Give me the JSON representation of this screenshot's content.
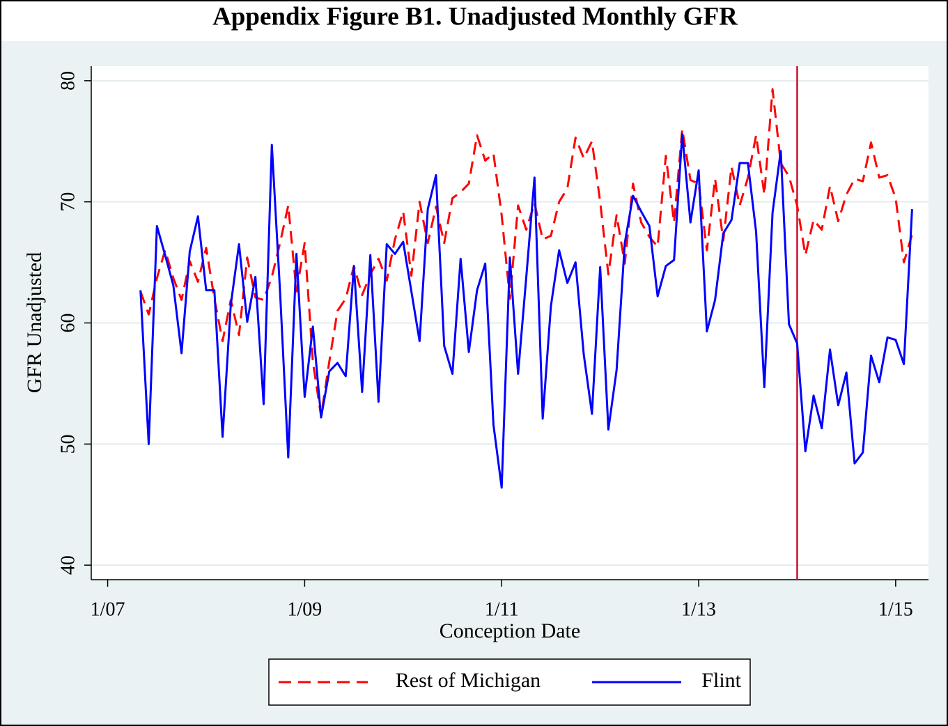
{
  "chart_data": {
    "type": "line",
    "title": "Appendix Figure B1. Unadjusted Monthly GFR",
    "x_label": "Conception Date",
    "y_label": "GFR Unadjusted",
    "x": [
      "5/07",
      "6/07",
      "7/07",
      "8/07",
      "9/07",
      "10/07",
      "11/07",
      "12/07",
      "1/08",
      "2/08",
      "3/08",
      "4/08",
      "5/08",
      "6/08",
      "7/08",
      "8/08",
      "9/08",
      "10/08",
      "11/08",
      "12/08",
      "1/09",
      "2/09",
      "3/09",
      "4/09",
      "5/09",
      "6/09",
      "7/09",
      "8/09",
      "9/09",
      "10/09",
      "11/09",
      "12/09",
      "1/10",
      "2/10",
      "3/10",
      "4/10",
      "5/10",
      "6/10",
      "7/10",
      "8/10",
      "9/10",
      "10/10",
      "11/10",
      "12/10",
      "1/11",
      "2/11",
      "3/11",
      "4/11",
      "5/11",
      "6/11",
      "7/11",
      "8/11",
      "9/11",
      "10/11",
      "11/11",
      "12/11",
      "1/12",
      "2/12",
      "3/12",
      "4/12",
      "5/12",
      "6/12",
      "7/12",
      "8/12",
      "9/12",
      "10/12",
      "11/12",
      "12/12",
      "1/13",
      "2/13",
      "3/13",
      "4/13",
      "5/13",
      "6/13",
      "7/13",
      "8/13",
      "9/13",
      "10/13",
      "11/13",
      "12/13",
      "1/14",
      "2/14",
      "3/14",
      "4/14",
      "5/14",
      "6/14",
      "7/14",
      "8/14",
      "9/14",
      "10/14",
      "11/14",
      "12/14",
      "1/15",
      "2/15",
      "3/15"
    ],
    "series": [
      {
        "name": "Rest of Michigan",
        "color": "#ff0000",
        "style": "dashed",
        "values": [
          62.6,
          60.7,
          63.7,
          66.0,
          63.7,
          61.9,
          65.1,
          63.4,
          66.2,
          62.0,
          58.5,
          61.9,
          59.0,
          65.4,
          62.1,
          61.9,
          63.8,
          66.6,
          69.7,
          62.6,
          66.6,
          56.8,
          52.3,
          56.8,
          61.0,
          62.0,
          64.7,
          62.3,
          64.0,
          65.3,
          63.5,
          66.9,
          69.2,
          63.9,
          70.0,
          66.6,
          69.6,
          66.6,
          70.3,
          70.8,
          71.5,
          75.5,
          73.4,
          74.0,
          68.9,
          62.0,
          69.7,
          67.7,
          69.9,
          66.9,
          67.2,
          70.0,
          71.1,
          75.3,
          73.6,
          75.0,
          70.0,
          64.0,
          68.9,
          64.9,
          71.5,
          68.3,
          67.1,
          66.3,
          73.8,
          68.3,
          76.0,
          71.8,
          71.5,
          66.0,
          71.9,
          66.8,
          72.9,
          69.7,
          72.0,
          75.5,
          70.6,
          79.3,
          73.2,
          72.1,
          69.7,
          65.6,
          68.5,
          67.7,
          71.3,
          68.4,
          70.6,
          71.9,
          71.7,
          74.9,
          72.0,
          72.2,
          70.3,
          65.0,
          67.3
        ]
      },
      {
        "name": "Flint",
        "color": "#0000ff",
        "style": "solid",
        "values": [
          62.7,
          50.0,
          68.0,
          65.6,
          63.1,
          57.5,
          65.9,
          68.8,
          62.7,
          62.7,
          50.6,
          61.5,
          66.5,
          60.1,
          63.8,
          53.3,
          74.7,
          62.6,
          48.9,
          65.7,
          53.9,
          59.7,
          52.2,
          56.0,
          56.7,
          55.6,
          64.7,
          54.3,
          65.6,
          53.5,
          66.5,
          65.7,
          66.7,
          62.6,
          58.5,
          69.4,
          72.2,
          58.1,
          55.8,
          65.3,
          57.6,
          62.7,
          64.9,
          51.6,
          46.4,
          65.4,
          55.8,
          63.8,
          72.0,
          52.1,
          61.4,
          66.0,
          63.3,
          65.0,
          57.4,
          52.5,
          64.6,
          51.2,
          56.1,
          66.6,
          70.5,
          69.2,
          68.0,
          62.2,
          64.7,
          65.2,
          75.6,
          68.3,
          72.6,
          59.3,
          61.9,
          67.4,
          68.5,
          73.2,
          73.2,
          67.5,
          54.7,
          69.1,
          74.2,
          59.9,
          58.3,
          49.4,
          54.0,
          51.3,
          57.8,
          53.2,
          55.9,
          48.4,
          49.3,
          57.3,
          55.1,
          58.8,
          58.6,
          56.6,
          69.4
        ]
      }
    ],
    "xlim": [
      "11/06",
      "5/15"
    ],
    "xticks": [
      "1/07",
      "1/09",
      "1/11",
      "1/13",
      "1/15"
    ],
    "ylim": [
      38.8,
      81.2
    ],
    "yticks": [
      40,
      50,
      60,
      70,
      80
    ],
    "grid": true,
    "vline": {
      "x": "1/14",
      "color": "#c8102e"
    },
    "legend": "bottom"
  }
}
